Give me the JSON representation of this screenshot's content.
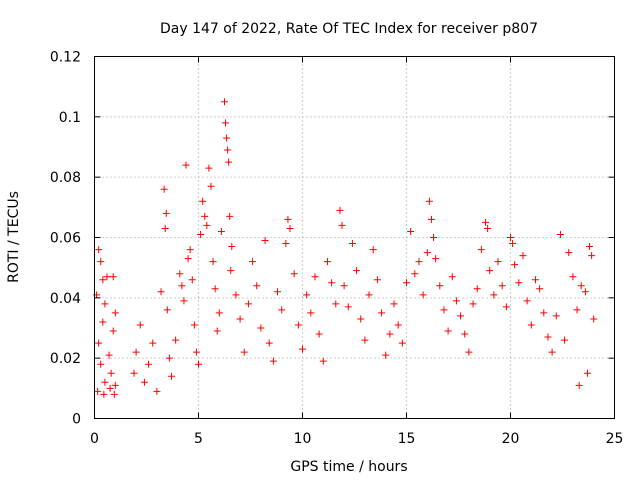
{
  "chart_data": {
    "type": "scatter",
    "title": "Day 147 of 2022, Rate Of TEC Index for receiver p807",
    "xlabel": "GPS time / hours",
    "ylabel": "ROTI / TECUs",
    "xlim": [
      0,
      25
    ],
    "ylim": [
      0,
      0.12
    ],
    "xticks": [
      0,
      5,
      10,
      15,
      20,
      25
    ],
    "xtick_labels": [
      "0",
      "5",
      "10",
      "15",
      "20",
      "25"
    ],
    "yticks": [
      0,
      0.02,
      0.04,
      0.06,
      0.08,
      0.1,
      0.12
    ],
    "ytick_labels": [
      "0",
      "0.02",
      "0.04",
      "0.06",
      "0.08",
      "0.1",
      "0.12"
    ],
    "grid": true,
    "marker": "+",
    "color": "#ff0000",
    "series": [
      {
        "name": "ROTI",
        "points": [
          [
            0.1,
            0.041
          ],
          [
            0.2,
            0.025
          ],
          [
            0.3,
            0.018
          ],
          [
            0.4,
            0.032
          ],
          [
            0.5,
            0.012
          ],
          [
            0.6,
            0.047
          ],
          [
            0.7,
            0.021
          ],
          [
            0.8,
            0.015
          ],
          [
            0.9,
            0.029
          ],
          [
            1.0,
            0.011
          ],
          [
            0.2,
            0.056
          ],
          [
            0.3,
            0.052
          ],
          [
            0.4,
            0.046
          ],
          [
            0.5,
            0.038
          ],
          [
            0.9,
            0.047
          ],
          [
            1.0,
            0.035
          ],
          [
            0.15,
            0.009
          ],
          [
            0.45,
            0.008
          ],
          [
            0.75,
            0.01
          ],
          [
            0.95,
            0.008
          ],
          [
            1.9,
            0.015
          ],
          [
            2.0,
            0.022
          ],
          [
            2.2,
            0.031
          ],
          [
            2.4,
            0.012
          ],
          [
            2.6,
            0.018
          ],
          [
            2.8,
            0.025
          ],
          [
            3.0,
            0.009
          ],
          [
            3.2,
            0.042
          ],
          [
            3.35,
            0.076
          ],
          [
            3.45,
            0.068
          ],
          [
            3.4,
            0.063
          ],
          [
            3.5,
            0.036
          ],
          [
            3.6,
            0.02
          ],
          [
            3.7,
            0.014
          ],
          [
            3.9,
            0.026
          ],
          [
            4.1,
            0.048
          ],
          [
            4.2,
            0.044
          ],
          [
            4.3,
            0.039
          ],
          [
            4.4,
            0.084
          ],
          [
            4.5,
            0.053
          ],
          [
            4.6,
            0.056
          ],
          [
            4.7,
            0.046
          ],
          [
            4.8,
            0.031
          ],
          [
            4.9,
            0.022
          ],
          [
            5.0,
            0.018
          ],
          [
            5.1,
            0.061
          ],
          [
            5.2,
            0.072
          ],
          [
            5.3,
            0.067
          ],
          [
            5.4,
            0.064
          ],
          [
            5.5,
            0.083
          ],
          [
            5.6,
            0.077
          ],
          [
            5.7,
            0.052
          ],
          [
            5.8,
            0.043
          ],
          [
            5.9,
            0.029
          ],
          [
            6.0,
            0.035
          ],
          [
            6.1,
            0.062
          ],
          [
            6.25,
            0.105
          ],
          [
            6.3,
            0.098
          ],
          [
            6.35,
            0.093
          ],
          [
            6.4,
            0.089
          ],
          [
            6.45,
            0.085
          ],
          [
            6.5,
            0.067
          ],
          [
            6.55,
            0.049
          ],
          [
            6.6,
            0.057
          ],
          [
            6.8,
            0.041
          ],
          [
            7.0,
            0.033
          ],
          [
            7.2,
            0.022
          ],
          [
            7.4,
            0.038
          ],
          [
            7.6,
            0.052
          ],
          [
            7.8,
            0.044
          ],
          [
            8.0,
            0.03
          ],
          [
            8.2,
            0.059
          ],
          [
            8.4,
            0.025
          ],
          [
            8.6,
            0.019
          ],
          [
            8.8,
            0.042
          ],
          [
            9.0,
            0.036
          ],
          [
            9.2,
            0.058
          ],
          [
            9.3,
            0.066
          ],
          [
            9.4,
            0.063
          ],
          [
            9.6,
            0.048
          ],
          [
            9.8,
            0.031
          ],
          [
            10.0,
            0.023
          ],
          [
            10.2,
            0.041
          ],
          [
            10.4,
            0.035
          ],
          [
            10.6,
            0.047
          ],
          [
            10.8,
            0.028
          ],
          [
            11.0,
            0.019
          ],
          [
            11.2,
            0.052
          ],
          [
            11.4,
            0.045
          ],
          [
            11.6,
            0.038
          ],
          [
            11.8,
            0.069
          ],
          [
            11.9,
            0.064
          ],
          [
            12.0,
            0.044
          ],
          [
            12.2,
            0.037
          ],
          [
            12.4,
            0.058
          ],
          [
            12.6,
            0.049
          ],
          [
            12.8,
            0.033
          ],
          [
            13.0,
            0.026
          ],
          [
            13.2,
            0.041
          ],
          [
            13.4,
            0.056
          ],
          [
            13.6,
            0.046
          ],
          [
            13.8,
            0.035
          ],
          [
            14.0,
            0.021
          ],
          [
            14.2,
            0.028
          ],
          [
            14.4,
            0.038
          ],
          [
            14.6,
            0.031
          ],
          [
            14.8,
            0.025
          ],
          [
            15.0,
            0.045
          ],
          [
            15.2,
            0.062
          ],
          [
            15.4,
            0.048
          ],
          [
            15.6,
            0.052
          ],
          [
            15.8,
            0.041
          ],
          [
            16.0,
            0.055
          ],
          [
            16.1,
            0.072
          ],
          [
            16.2,
            0.066
          ],
          [
            16.3,
            0.06
          ],
          [
            16.4,
            0.053
          ],
          [
            16.6,
            0.044
          ],
          [
            16.8,
            0.036
          ],
          [
            17.0,
            0.029
          ],
          [
            17.2,
            0.047
          ],
          [
            17.4,
            0.039
          ],
          [
            17.6,
            0.034
          ],
          [
            17.8,
            0.028
          ],
          [
            18.0,
            0.022
          ],
          [
            18.2,
            0.038
          ],
          [
            18.4,
            0.043
          ],
          [
            18.6,
            0.056
          ],
          [
            18.8,
            0.065
          ],
          [
            18.9,
            0.063
          ],
          [
            19.0,
            0.049
          ],
          [
            19.2,
            0.041
          ],
          [
            19.4,
            0.052
          ],
          [
            19.6,
            0.044
          ],
          [
            19.8,
            0.037
          ],
          [
            20.0,
            0.06
          ],
          [
            20.1,
            0.058
          ],
          [
            20.2,
            0.051
          ],
          [
            20.4,
            0.045
          ],
          [
            20.6,
            0.054
          ],
          [
            20.8,
            0.039
          ],
          [
            21.0,
            0.031
          ],
          [
            21.2,
            0.046
          ],
          [
            21.4,
            0.043
          ],
          [
            21.6,
            0.035
          ],
          [
            21.8,
            0.027
          ],
          [
            22.0,
            0.022
          ],
          [
            22.2,
            0.034
          ],
          [
            22.4,
            0.061
          ],
          [
            22.6,
            0.026
          ],
          [
            22.8,
            0.055
          ],
          [
            23.0,
            0.047
          ],
          [
            23.2,
            0.036
          ],
          [
            23.4,
            0.044
          ],
          [
            23.6,
            0.042
          ],
          [
            23.8,
            0.057
          ],
          [
            23.9,
            0.054
          ],
          [
            24.0,
            0.033
          ],
          [
            23.7,
            0.015
          ],
          [
            23.3,
            0.011
          ]
        ]
      }
    ]
  }
}
